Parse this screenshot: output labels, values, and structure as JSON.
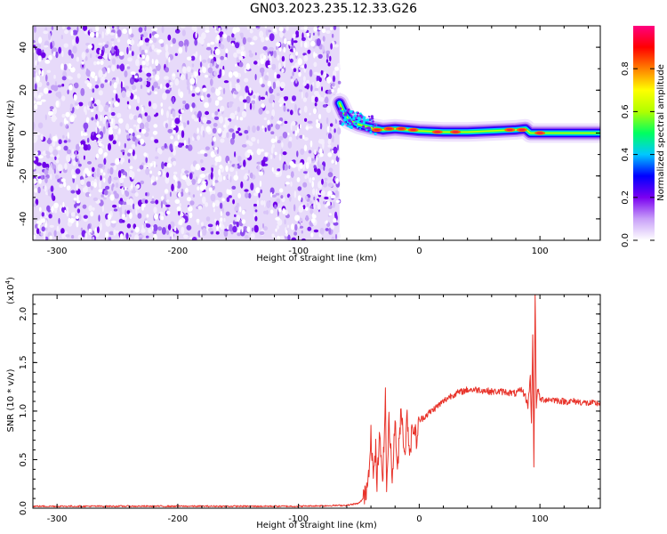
{
  "title": "GN03.2023.235.12.33.G26",
  "charts": {
    "spectrogram": {
      "type": "heatmap",
      "xlabel": "Height of straight line (km)",
      "ylabel": "Frequency (Hz)",
      "xlim": [
        -320,
        150
      ],
      "ylim": [
        -50,
        50
      ],
      "xticks": [
        -300,
        -200,
        -100,
        0,
        100
      ],
      "xtick_labels": [
        "-300",
        "-200",
        "-100",
        "0",
        "100"
      ],
      "yticks": [
        -40,
        -20,
        0,
        20,
        40
      ],
      "ytick_labels": [
        "-40",
        "-20",
        "0",
        "20",
        "40"
      ],
      "noise_region_x": [
        -320,
        -66
      ],
      "signal_region_x": [
        -66,
        150
      ],
      "centerline": [
        {
          "x": -66,
          "y": 14
        },
        {
          "x": -62,
          "y": 9
        },
        {
          "x": -58,
          "y": 6
        },
        {
          "x": -50,
          "y": 4
        },
        {
          "x": -40,
          "y": 2.5
        },
        {
          "x": -30,
          "y": 1.5
        },
        {
          "x": -20,
          "y": 2
        },
        {
          "x": -10,
          "y": 1.5
        },
        {
          "x": 0,
          "y": 1
        },
        {
          "x": 20,
          "y": 0.5
        },
        {
          "x": 40,
          "y": 0.5
        },
        {
          "x": 60,
          "y": 1
        },
        {
          "x": 80,
          "y": 1.5
        },
        {
          "x": 88,
          "y": 2
        },
        {
          "x": 92,
          "y": 0
        },
        {
          "x": 100,
          "y": 0
        },
        {
          "x": 120,
          "y": 0
        },
        {
          "x": 150,
          "y": 0
        }
      ],
      "hotspots": [
        {
          "x": -35,
          "y": 1.5
        },
        {
          "x": -25,
          "y": 2
        },
        {
          "x": -15,
          "y": 2
        },
        {
          "x": -5,
          "y": 1.5
        },
        {
          "x": 15,
          "y": 0.5
        },
        {
          "x": 30,
          "y": 0.5
        },
        {
          "x": 75,
          "y": 1.5
        },
        {
          "x": 85,
          "y": 1.5
        },
        {
          "x": 100,
          "y": 0
        }
      ],
      "colorbar": {
        "label": "Normalized spectral amplitude",
        "range": [
          0,
          1
        ],
        "ticks": [
          0.0,
          0.2,
          0.4,
          0.6,
          0.8
        ],
        "tick_labels": [
          "0.0",
          "0.2",
          "0.4",
          "0.6",
          "0.8"
        ],
        "colors": [
          "#ffffff",
          "#c8a0f8",
          "#7a00f0",
          "#0000ff",
          "#00c8ff",
          "#00ff60",
          "#b0ff00",
          "#ffff00",
          "#ff8000",
          "#ff0000",
          "#ff0080"
        ]
      }
    },
    "snr": {
      "type": "line",
      "xlabel": "Height of straight line (km)",
      "ylabel": "SNR (10 * v/v)",
      "multiplier_label": "(x10",
      "multiplier_exp": "4",
      "multiplier_close": ")",
      "xlim": [
        -320,
        150
      ],
      "ylim": [
        0,
        2.2
      ],
      "xticks": [
        -300,
        -200,
        -100,
        0,
        100
      ],
      "xtick_labels": [
        "-300",
        "-200",
        "-100",
        "0",
        "100"
      ],
      "yticks": [
        0.0,
        0.5,
        1.0,
        1.5,
        2.0
      ],
      "ytick_labels": [
        "0.0",
        "0.5",
        "1.0",
        "1.5",
        "2.0"
      ],
      "line_color": "#e8332a",
      "series": [
        {
          "x": [
            -320,
            -200,
            -100,
            -60,
            -50,
            -45,
            -42,
            -40,
            -38,
            -36,
            -35,
            -33,
            -30,
            -28,
            -27,
            -25,
            -22,
            -20,
            -18,
            -15,
            -12,
            -10,
            -8,
            -5,
            -2,
            0,
            5,
            10,
            15,
            20,
            25,
            30,
            35,
            40,
            50,
            60,
            70,
            80,
            85,
            88,
            90,
            92,
            93,
            94,
            95,
            96,
            97,
            98,
            100,
            110,
            120,
            130,
            140,
            150
          ],
          "y": [
            0.02,
            0.02,
            0.02,
            0.03,
            0.05,
            0.12,
            0.35,
            0.8,
            0.3,
            0.6,
            0.25,
            0.7,
            0.35,
            1.15,
            0.2,
            0.9,
            0.3,
            0.95,
            0.35,
            1.05,
            0.55,
            0.95,
            0.6,
            0.85,
            0.7,
            0.9,
            0.95,
            1.0,
            1.05,
            1.1,
            1.15,
            1.18,
            1.2,
            1.22,
            1.22,
            1.2,
            1.2,
            1.18,
            1.22,
            1.15,
            1.05,
            1.35,
            0.85,
            1.8,
            0.45,
            2.2,
            1.0,
            1.25,
            1.12,
            1.12,
            1.1,
            1.1,
            1.08,
            1.08
          ]
        }
      ]
    }
  }
}
